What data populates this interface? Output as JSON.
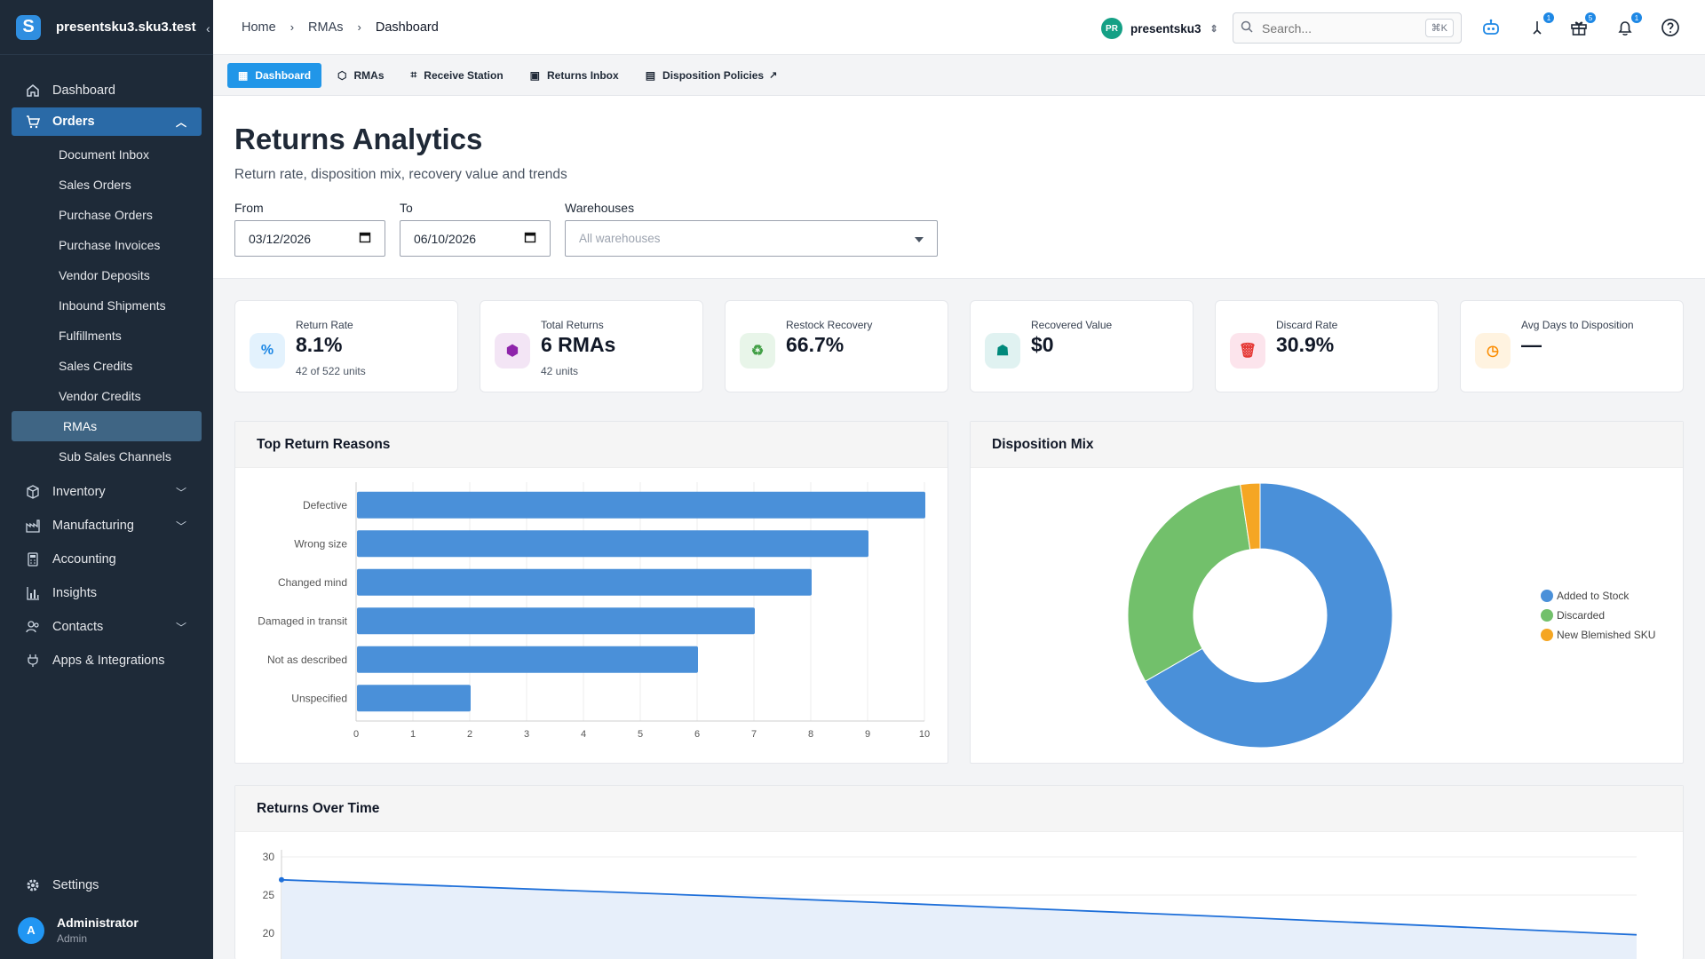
{
  "app": {
    "org_name": "presentsku3.sku3.test",
    "logo_letter": "S"
  },
  "sidebar": {
    "items": [
      {
        "label": "Dashboard",
        "icon": "home-icon"
      },
      {
        "label": "Orders",
        "icon": "cart-icon"
      }
    ],
    "orders_sub": [
      "Document Inbox",
      "Sales Orders",
      "Purchase Orders",
      "Purchase Invoices",
      "Vendor Deposits",
      "Inbound Shipments",
      "Fulfillments",
      "Sales Credits",
      "Vendor Credits",
      "RMAs",
      "Sub Sales Channels"
    ],
    "lower_items": [
      {
        "label": "Inventory",
        "icon": "box-icon",
        "expandable": true
      },
      {
        "label": "Manufacturing",
        "icon": "factory-icon",
        "expandable": true
      },
      {
        "label": "Accounting",
        "icon": "calculator-icon",
        "expandable": false
      },
      {
        "label": "Insights",
        "icon": "bar-chart-icon",
        "expandable": false
      },
      {
        "label": "Contacts",
        "icon": "contacts-icon",
        "expandable": true
      },
      {
        "label": "Apps & Integrations",
        "icon": "plug-icon",
        "expandable": false
      }
    ],
    "settings_label": "Settings",
    "user": {
      "initial": "A",
      "name": "Administrator",
      "role": "Admin"
    }
  },
  "topbar": {
    "breadcrumbs": [
      "Home",
      "RMAs",
      "Dashboard"
    ],
    "tenant": {
      "initials": "PR",
      "name": "presentsku3"
    },
    "search": {
      "placeholder": "Search...",
      "shortcut": "⌘K"
    },
    "badges": {
      "pin": "1",
      "gift": "5",
      "bell": "1"
    }
  },
  "tabs": [
    {
      "label": "Dashboard",
      "active": true
    },
    {
      "label": "RMAs",
      "active": false
    },
    {
      "label": "Receive Station",
      "active": false
    },
    {
      "label": "Returns Inbox",
      "active": false
    },
    {
      "label": "Disposition Policies",
      "active": false
    }
  ],
  "page": {
    "title": "Returns Analytics",
    "subtitle": "Return rate, disposition mix, recovery value and trends",
    "filters": {
      "from_label": "From",
      "from_value": "03/12/2026",
      "to_label": "To",
      "to_value": "06/10/2026",
      "warehouses_label": "Warehouses",
      "warehouses_placeholder": "All warehouses"
    }
  },
  "kpis": [
    {
      "label": "Return Rate",
      "value": "8.1%",
      "note": "42 of 522 units",
      "icon": "percent-icon",
      "color": "#e3f2fd",
      "fg": "#1e88e5"
    },
    {
      "label": "Total Returns",
      "value": "6 RMAs",
      "note": "42 units",
      "icon": "package-icon",
      "color": "#f3e5f5",
      "fg": "#8e24aa"
    },
    {
      "label": "Restock Recovery",
      "value": "66.7%",
      "note": "",
      "icon": "recycle-icon",
      "color": "#e8f5e9",
      "fg": "#43a047"
    },
    {
      "label": "Recovered Value",
      "value": "$0",
      "note": "",
      "icon": "robot-icon",
      "color": "#e0f2f1",
      "fg": "#00897b"
    },
    {
      "label": "Discard Rate",
      "value": "30.9%",
      "note": "",
      "icon": "trash-icon",
      "color": "#fce4ec",
      "fg": "#e53935"
    },
    {
      "label": "Avg Days to Disposition",
      "value": "—",
      "note": "",
      "icon": "clock-icon",
      "color": "#fff3e0",
      "fg": "#fb8c00"
    }
  ],
  "panels": {
    "reasons_title": "Top Return Reasons",
    "mix_title": "Disposition Mix",
    "trend_title": "Returns Over Time"
  },
  "chart_data": [
    {
      "type": "bar",
      "orientation": "horizontal",
      "title": "Top Return Reasons",
      "categories": [
        "Defective",
        "Wrong size",
        "Changed mind",
        "Damaged in transit",
        "Not as described",
        "Unspecified"
      ],
      "values": [
        10,
        9,
        8,
        7,
        6,
        2
      ],
      "xlim": [
        0,
        10
      ],
      "ticks": [
        0,
        1,
        2,
        3,
        4,
        5,
        6,
        7,
        8,
        9,
        10
      ],
      "color": "#4a90d9",
      "grid": true
    },
    {
      "type": "pie",
      "donut": true,
      "title": "Disposition Mix",
      "labels": [
        "Added to Stock",
        "Discarded",
        "New Blemished SKU"
      ],
      "values": [
        66.7,
        30.9,
        2.4
      ],
      "colors": [
        "#4a90d9",
        "#72c06b",
        "#f5a623"
      ],
      "legend": "right"
    },
    {
      "type": "area",
      "title": "Returns Over Time",
      "yticks": [
        30,
        25,
        20
      ],
      "ylim_visible": [
        20,
        30
      ],
      "series_values": [
        27,
        24.8,
        22.4,
        19.8
      ],
      "color": "#1e6fd9"
    }
  ]
}
